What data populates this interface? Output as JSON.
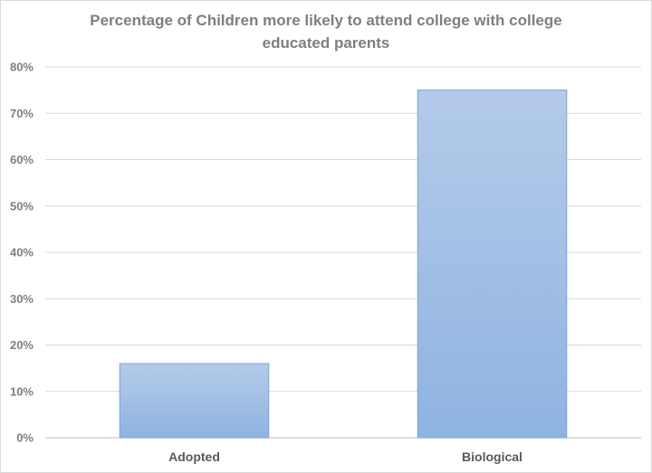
{
  "chart_data": {
    "type": "bar",
    "title_line1": "Percentage of Children more likely to attend college with college",
    "title_line2": "educated parents",
    "categories": [
      "Adopted",
      "Biological"
    ],
    "values": [
      16,
      75
    ],
    "yticks": [
      "0%",
      "10%",
      "20%",
      "30%",
      "40%",
      "50%",
      "60%",
      "70%",
      "80%"
    ],
    "ylim": [
      0,
      80
    ],
    "grid": true,
    "bar_color_top": "#b4cbea",
    "bar_color_bottom": "#8fb3e1",
    "bar_border": "#7aa3d6"
  }
}
